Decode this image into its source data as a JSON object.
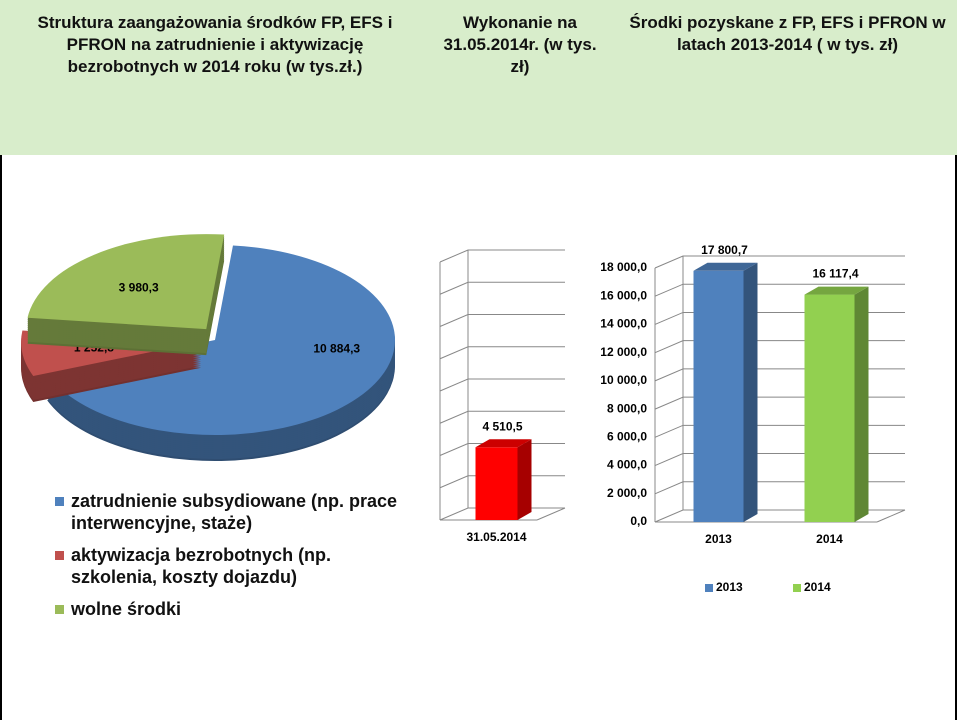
{
  "chart_data": [
    {
      "type": "pie",
      "title": "Struktura zaangażowania środków FP, EFS i PFRON na zatrudnienie i aktywizację bezrobotnych w 2014 roku (w tys.zł.)",
      "categories": [
        "zatrudnienie subsydiowane (np. prace interwencyjne, staże)",
        "aktywizacja bezrobotnych (np. szkolenia, koszty dojazdu)",
        "wolne środki"
      ],
      "values": [
        10884.3,
        1252.8,
        3980.3
      ],
      "value_labels": [
        "10 884,3",
        "1 252,8",
        "3 980,3"
      ],
      "colors": [
        "#4f81bd",
        "#c0504d",
        "#9bbb59"
      ],
      "legend": "bottom"
    },
    {
      "type": "bar",
      "title": "Wykonanie na 31.05.2014r. (w tys. zł)",
      "categories": [
        "31.05.2014"
      ],
      "values": [
        4510.5
      ],
      "value_labels": [
        "4 510,5"
      ],
      "colors": [
        "#ff0000"
      ],
      "ylim": [
        0,
        16000
      ],
      "yticks": [
        0,
        2000,
        4000,
        6000,
        8000,
        10000,
        12000,
        14000,
        16000
      ],
      "show_tick_labels": false,
      "grid": true
    },
    {
      "type": "bar",
      "title": "Środki pozyskane z FP, EFS i PFRON w latach 2013-2014 ( w tys. zł)",
      "categories": [
        "2013",
        "2014"
      ],
      "values": [
        17800.7,
        16117.4
      ],
      "value_labels": [
        "17 800,7",
        "16 117,4"
      ],
      "colors": [
        "#4f81bd",
        "#92d050"
      ],
      "ylim": [
        0,
        18000
      ],
      "yticks": [
        {
          "value": 0,
          "label": "0,0"
        },
        {
          "value": 2000,
          "label": "2 000,0"
        },
        {
          "value": 4000,
          "label": "4 000,0"
        },
        {
          "value": 6000,
          "label": "6 000,0"
        },
        {
          "value": 8000,
          "label": "8 000,0"
        },
        {
          "value": 10000,
          "label": "10 000,0"
        },
        {
          "value": 12000,
          "label": "12 000,0"
        },
        {
          "value": 14000,
          "label": "14 000,0"
        },
        {
          "value": 16000,
          "label": "16 000,0"
        },
        {
          "value": 18000,
          "label": "18 000,0"
        }
      ],
      "show_tick_labels": true,
      "grid": true,
      "legend": "bottom"
    }
  ]
}
